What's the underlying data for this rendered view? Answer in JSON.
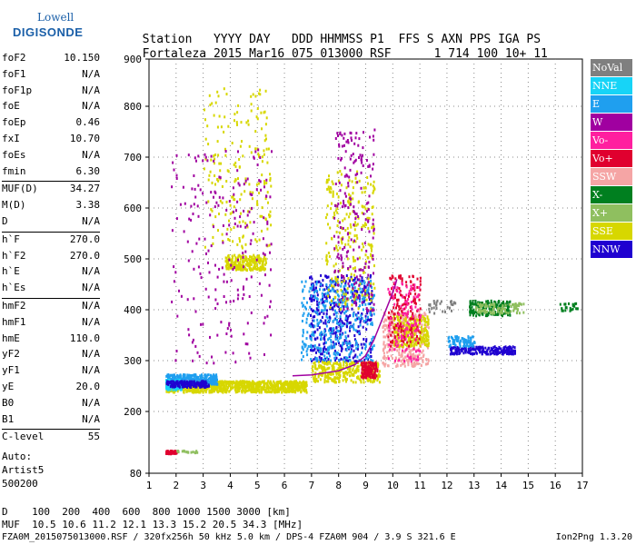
{
  "logo": {
    "line1": "Lowell",
    "line2": "DIGISONDE"
  },
  "header": {
    "labels": [
      "Station",
      "YYYY",
      "DAY",
      "DDD",
      "HHMMSS",
      "P1",
      "FFS",
      "S",
      "AXN",
      "PPS",
      "IGA",
      "PS"
    ],
    "values": [
      "Fortaleza",
      "2015",
      "Mar16",
      "075",
      "013000",
      "RSF",
      "1",
      "714",
      "100",
      "10+",
      "11"
    ]
  },
  "params": [
    {
      "label": "foF2",
      "value": "10.150"
    },
    {
      "label": "foF1",
      "value": "N/A"
    },
    {
      "label": "foF1p",
      "value": "N/A"
    },
    {
      "label": "foE",
      "value": "N/A"
    },
    {
      "label": "foEp",
      "value": "0.46"
    },
    {
      "label": "fxI",
      "value": "10.70"
    },
    {
      "label": "foEs",
      "value": "N/A"
    },
    {
      "label": "fmin",
      "value": "6.30"
    },
    {
      "label": "MUF(D)",
      "value": "34.27"
    },
    {
      "label": "M(D)",
      "value": "3.38"
    },
    {
      "label": "D",
      "value": "N/A"
    },
    {
      "label": "h`F",
      "value": "270.0"
    },
    {
      "label": "h`F2",
      "value": "270.0"
    },
    {
      "label": "h`E",
      "value": "N/A"
    },
    {
      "label": "h`Es",
      "value": "N/A"
    },
    {
      "label": "hmF2",
      "value": "N/A"
    },
    {
      "label": "hmF1",
      "value": "N/A"
    },
    {
      "label": "hmE",
      "value": "110.0"
    },
    {
      "label": "yF2",
      "value": "N/A"
    },
    {
      "label": "yF1",
      "value": "N/A"
    },
    {
      "label": "yE",
      "value": "20.0"
    },
    {
      "label": "B0",
      "value": "N/A"
    },
    {
      "label": "B1",
      "value": "N/A"
    },
    {
      "label": "C-level",
      "value": "55"
    }
  ],
  "auto": {
    "line1": "Auto:",
    "line2": "Artist5",
    "line3": "500200"
  },
  "legend": [
    {
      "name": "NoVal",
      "color": "#7f7f7f"
    },
    {
      "name": "NNE",
      "color": "#17d4f7"
    },
    {
      "name": "E",
      "color": "#1f9fef"
    },
    {
      "name": "W",
      "color": "#a000a0"
    },
    {
      "name": "Vo-",
      "color": "#ff1f9f"
    },
    {
      "name": "Vo+",
      "color": "#e0002f"
    },
    {
      "name": "SSW",
      "color": "#f5a5a5"
    },
    {
      "name": "X-",
      "color": "#007f1f"
    },
    {
      "name": "X+",
      "color": "#8fbf5f"
    },
    {
      "name": "SSE",
      "color": "#d7d700"
    },
    {
      "name": "NNW",
      "color": "#1f00d0"
    }
  ],
  "bottom": {
    "d_label": "D",
    "d_values": "100  200  400  600  800 1000 1500 3000 [km]",
    "muf_label": "MUF",
    "muf_values": "10.5 10.6 11.2 12.1 13.3 15.2 20.5 34.3 [MHz]",
    "footer": "FZA0M_2015075013000.RSF / 320fx256h 50 kHz 5.0 km / DPS-4 FZA0M 904 / 3.9 S 321.6 E",
    "version": "Ion2Png 1.3.20"
  },
  "chart_data": {
    "type": "scatter",
    "xlim": [
      1,
      17
    ],
    "ylim": [
      80,
      900
    ],
    "xticks": [
      "1",
      "2",
      "3",
      "4",
      "5",
      "6",
      "7",
      "8",
      "9",
      "10",
      "11",
      "12",
      "13",
      "14",
      "15",
      "16",
      "17"
    ],
    "yticks": [
      "80",
      "200",
      "300",
      "400",
      "500",
      "600",
      "700",
      "800",
      "900"
    ],
    "grid": true,
    "trace": {
      "color": "#a000a0",
      "x": [
        6.3,
        7.0,
        8.0,
        8.6,
        9.0,
        9.3,
        9.6,
        9.9,
        10.1,
        10.15
      ],
      "y": [
        270,
        272,
        280,
        292,
        310,
        340,
        380,
        420,
        450,
        460
      ]
    },
    "clusters": [
      {
        "series": "SSE",
        "x": [
          1.6,
          6.8
        ],
        "y": [
          240,
          262
        ],
        "n": 900
      },
      {
        "series": "E",
        "x": [
          1.6,
          3.5
        ],
        "y": [
          255,
          275
        ],
        "n": 300
      },
      {
        "series": "NNE",
        "x": [
          1.6,
          2.2
        ],
        "y": [
          245,
          265
        ],
        "n": 100
      },
      {
        "series": "NNW",
        "x": [
          1.6,
          3.2
        ],
        "y": [
          250,
          262
        ],
        "n": 150
      },
      {
        "series": "SSE",
        "x": [
          3.8,
          5.3
        ],
        "y": [
          480,
          510
        ],
        "n": 250
      },
      {
        "series": "SSE",
        "x": [
          3.0,
          5.5
        ],
        "y": [
          520,
          840
        ],
        "n": 200
      },
      {
        "series": "W",
        "x": [
          1.8,
          5.5
        ],
        "y": [
          290,
          720
        ],
        "n": 220
      },
      {
        "series": "NNW",
        "x": [
          6.9,
          9.2
        ],
        "y": [
          300,
          470
        ],
        "n": 400
      },
      {
        "series": "E",
        "x": [
          6.6,
          9.3
        ],
        "y": [
          300,
          460
        ],
        "n": 380
      },
      {
        "series": "SSE",
        "x": [
          7.5,
          9.3
        ],
        "y": [
          400,
          680
        ],
        "n": 250
      },
      {
        "series": "SSE",
        "x": [
          7.0,
          9.5
        ],
        "y": [
          260,
          300
        ],
        "n": 300
      },
      {
        "series": "Vo+",
        "x": [
          8.8,
          9.4
        ],
        "y": [
          268,
          300
        ],
        "n": 120
      },
      {
        "series": "W",
        "x": [
          7.8,
          9.3
        ],
        "y": [
          400,
          760
        ],
        "n": 200
      },
      {
        "series": "SSW",
        "x": [
          9.6,
          11.3
        ],
        "y": [
          290,
          400
        ],
        "n": 350
      },
      {
        "series": "SSE",
        "x": [
          10.0,
          11.3
        ],
        "y": [
          330,
          390
        ],
        "n": 250
      },
      {
        "series": "Vo+",
        "x": [
          9.8,
          11.0
        ],
        "y": [
          330,
          470
        ],
        "n": 150
      },
      {
        "series": "Vo-",
        "x": [
          9.8,
          11.0
        ],
        "y": [
          300,
          460
        ],
        "n": 120
      },
      {
        "series": "NNW",
        "x": [
          12.1,
          14.5
        ],
        "y": [
          315,
          330
        ],
        "n": 200
      },
      {
        "series": "E",
        "x": [
          12.0,
          13.0
        ],
        "y": [
          330,
          350
        ],
        "n": 80
      },
      {
        "series": "X-",
        "x": [
          12.8,
          14.3
        ],
        "y": [
          390,
          420
        ],
        "n": 180
      },
      {
        "series": "X+",
        "x": [
          13.0,
          14.8
        ],
        "y": [
          395,
          415
        ],
        "n": 100
      },
      {
        "series": "X-",
        "x": [
          16.1,
          16.8
        ],
        "y": [
          400,
          415
        ],
        "n": 25
      },
      {
        "series": "NoVal",
        "x": [
          11.3,
          12.3
        ],
        "y": [
          395,
          420
        ],
        "n": 30
      },
      {
        "series": "Vo+",
        "x": [
          1.6,
          2.0
        ],
        "y": [
          120,
          126
        ],
        "n": 60
      },
      {
        "series": "X+",
        "x": [
          2.0,
          2.8
        ],
        "y": [
          122,
          126
        ],
        "n": 20
      }
    ]
  }
}
